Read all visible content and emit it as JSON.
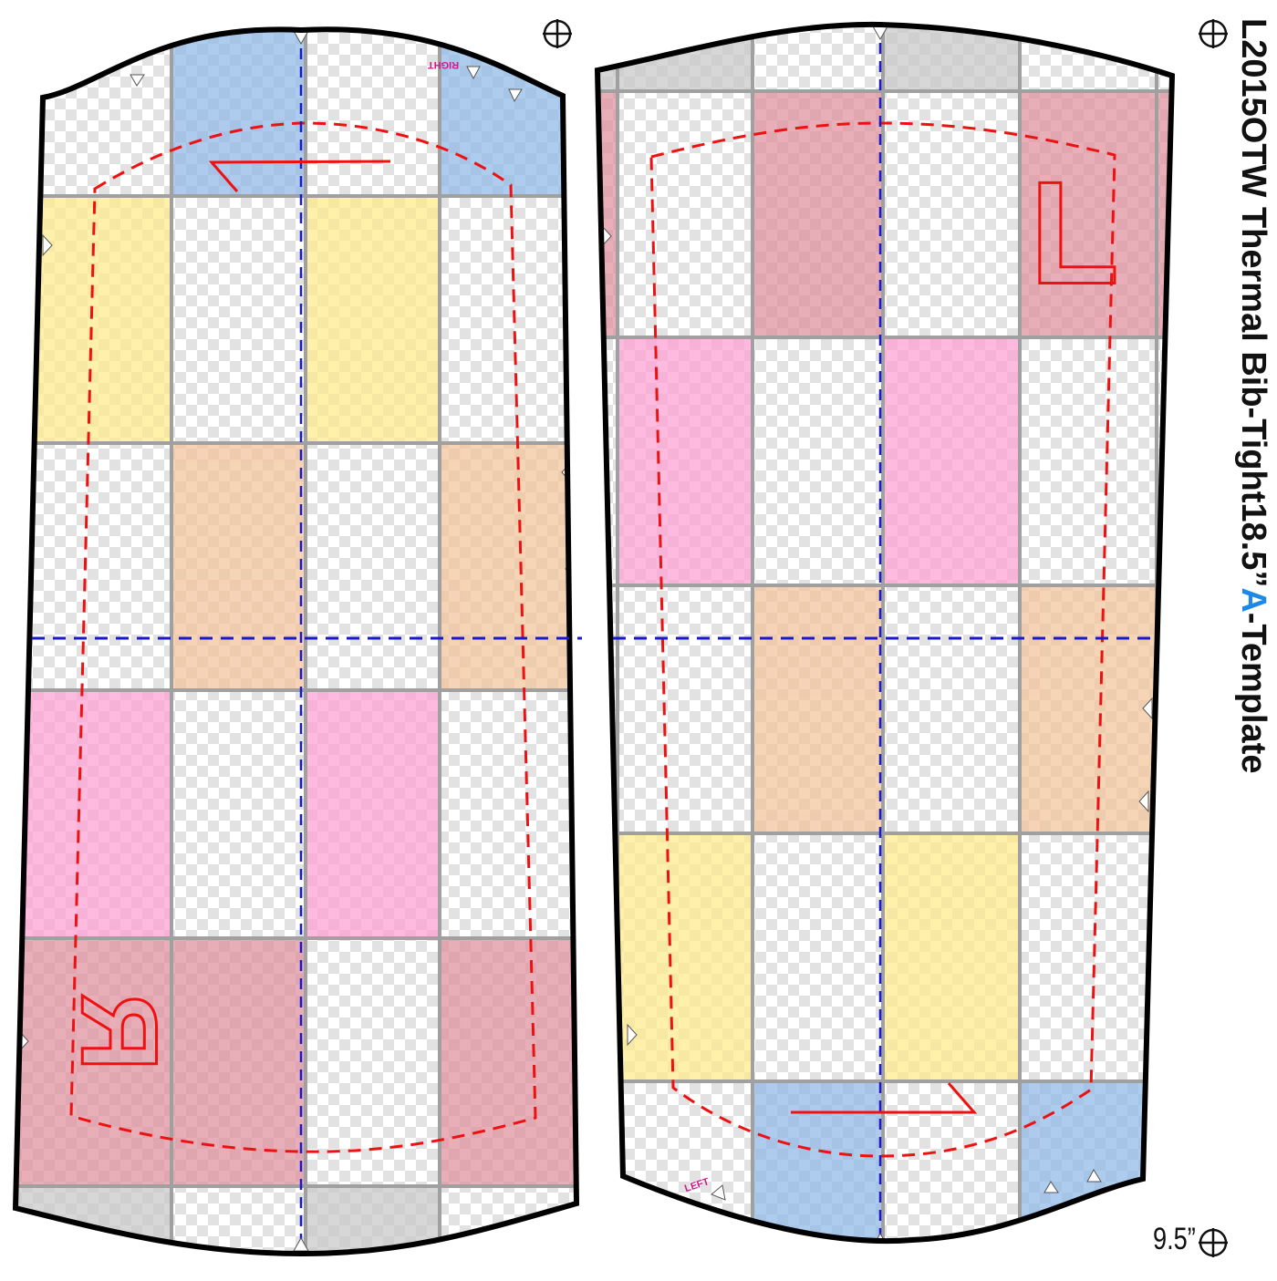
{
  "document": {
    "piece_letter": "L",
    "year": "2015",
    "product": "OTW Thermal Bib-Tight",
    "length": "18.5”",
    "template_letter": "A",
    "template_suffix": "-Template",
    "width_label": "9.5”"
  },
  "pieces": {
    "right": {
      "big_letter": "R",
      "corner_tag": "RIGHT"
    },
    "left": {
      "big_letter": "L",
      "corner_tag": "LEFT"
    }
  },
  "colors": {
    "outline": "#000000",
    "seam_allowance": "#ee1111",
    "center_line": "#1a1acc",
    "grid_line": "#a0a0a0",
    "checker_light": "#ffffff",
    "checker_dark": "#e2e2e2",
    "accent_blue": "#1e88e5",
    "tag_magenta": "#d4168c",
    "tile_blue": "#8fb8e8",
    "tile_yellow": "#ffeb8a",
    "tile_peach": "#f3c39a",
    "tile_pink": "#ff9fd2",
    "tile_rose": "#e0909e",
    "tile_grey": "#c8c8c8"
  },
  "icons": [
    "registration-crosshair-icon",
    "notch-marker-icon",
    "grain-arrow-icon"
  ]
}
